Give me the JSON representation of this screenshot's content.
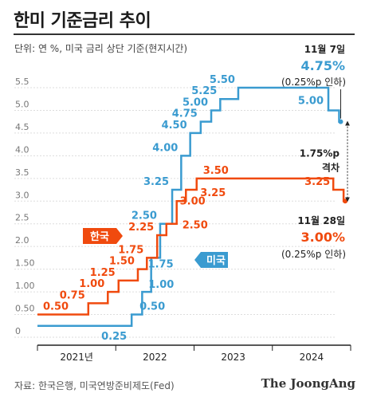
{
  "title": "한미 기준금리 추이",
  "unit_note": "단위: 연 %, 미국 금리 상단 기준(현지시간)",
  "source": "자료: 한국은행, 미국연방준비제도(Fed)",
  "logo": "The JoongAng",
  "colors": {
    "us": "#3a9bd0",
    "kr": "#f04a0e",
    "axis": "#222222",
    "grid": "#dddddd"
  },
  "chart_data": {
    "type": "line",
    "step": true,
    "title": "한미 기준금리 추이",
    "ylabel": "단위: 연 %, 미국 금리 상단 기준(현지시간)",
    "ylim": [
      0,
      5.5
    ],
    "yticks": [
      "0",
      "0.50",
      "1.00",
      "1.50",
      "2.0",
      "2.5",
      "3.0",
      "3.5",
      "4.0",
      "4.5",
      "5.0",
      "5.5"
    ],
    "ytick_values": [
      0,
      0.5,
      1.0,
      1.5,
      2.0,
      2.5,
      3.0,
      3.5,
      4.0,
      4.5,
      5.0,
      5.5
    ],
    "xlim": [
      "2021-01-01",
      "2024-12-31"
    ],
    "xticks": [
      {
        "label": "2021년",
        "from": "2021-01-01",
        "to": "2022-01-01"
      },
      {
        "label": "2022",
        "from": "2022-01-01",
        "to": "2023-01-01"
      },
      {
        "label": "2023",
        "from": "2023-01-01",
        "to": "2024-01-01"
      },
      {
        "label": "2024",
        "from": "2024-01-01",
        "to": "2024-12-31"
      }
    ],
    "series": [
      {
        "name": "한국",
        "color": "#f04a0e",
        "points": [
          {
            "x": "2021-01-01",
            "y": 0.5,
            "label": "0.50"
          },
          {
            "x": "2021-08-26",
            "y": 0.75,
            "label": "0.75"
          },
          {
            "x": "2021-11-25",
            "y": 1.0,
            "label": "1.00"
          },
          {
            "x": "2022-01-14",
            "y": 1.25,
            "label": "1.25"
          },
          {
            "x": "2022-04-14",
            "y": 1.5,
            "label": "1.50"
          },
          {
            "x": "2022-05-26",
            "y": 1.75,
            "label": "1.75"
          },
          {
            "x": "2022-07-13",
            "y": 2.25,
            "label": "2.25"
          },
          {
            "x": "2022-08-25",
            "y": 2.5,
            "label": "2.50"
          },
          {
            "x": "2022-10-12",
            "y": 3.0,
            "label": "3.00"
          },
          {
            "x": "2022-11-24",
            "y": 3.25,
            "label": "3.25"
          },
          {
            "x": "2023-01-13",
            "y": 3.5,
            "label": "3.50"
          },
          {
            "x": "2024-10-11",
            "y": 3.25,
            "label": "3.25"
          },
          {
            "x": "2024-11-28",
            "y": 3.0,
            "label": ""
          }
        ]
      },
      {
        "name": "미국",
        "color": "#3a9bd0",
        "points": [
          {
            "x": "2021-01-01",
            "y": 0.25,
            "label": "0.25"
          },
          {
            "x": "2022-03-16",
            "y": 0.5,
            "label": "0.50"
          },
          {
            "x": "2022-05-04",
            "y": 1.0,
            "label": "1.00"
          },
          {
            "x": "2022-06-15",
            "y": 1.75,
            "label": "1.75"
          },
          {
            "x": "2022-07-27",
            "y": 2.5,
            "label": "2.50"
          },
          {
            "x": "2022-09-21",
            "y": 3.25,
            "label": "3.25"
          },
          {
            "x": "2022-11-02",
            "y": 4.0,
            "label": "4.00"
          },
          {
            "x": "2022-12-14",
            "y": 4.5,
            "label": "4.50"
          },
          {
            "x": "2023-02-01",
            "y": 4.75,
            "label": "4.75"
          },
          {
            "x": "2023-03-22",
            "y": 5.0,
            "label": "5.00"
          },
          {
            "x": "2023-05-03",
            "y": 5.25,
            "label": "5.25"
          },
          {
            "x": "2023-07-26",
            "y": 5.5,
            "label": "5.50"
          },
          {
            "x": "2024-09-18",
            "y": 5.0,
            "label": "5.00"
          },
          {
            "x": "2024-11-07",
            "y": 4.75,
            "label": ""
          }
        ]
      }
    ],
    "legend": [
      {
        "name": "한국",
        "placement": "left"
      },
      {
        "name": "미국",
        "placement": "center"
      }
    ],
    "annotations": [
      {
        "id": "us_latest",
        "date": "11월 7일",
        "value": "4.75%",
        "note": "(0.25%p 인하)"
      },
      {
        "id": "kr_latest",
        "date": "11월 28일",
        "value": "3.00%",
        "note": "(0.25%p 인하)"
      },
      {
        "id": "gap",
        "value": "1.75%p",
        "label": "격차"
      }
    ]
  }
}
